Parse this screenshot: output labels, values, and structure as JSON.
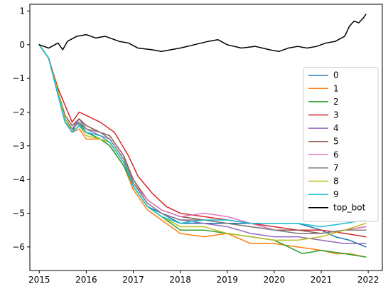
{
  "chart_data": {
    "type": "line",
    "title": "",
    "xlabel": "",
    "ylabel": "",
    "xlim": [
      2014.8,
      2022.3
    ],
    "ylim": [
      -6.7,
      1.2
    ],
    "xticks": [
      2015,
      2016,
      2017,
      2018,
      2019,
      2020,
      2021,
      2022
    ],
    "yticks": [
      1,
      0,
      -1,
      -2,
      -3,
      -4,
      -5,
      -6
    ],
    "ytick_labels": [
      "1",
      "0",
      "−1",
      "−2",
      "−3",
      "−4",
      "−5",
      "−6"
    ],
    "grid": false,
    "legend_position": "center-right",
    "series": [
      {
        "name": "0",
        "color": "#1f77b4",
        "points": [
          [
            2015.0,
            0.0
          ],
          [
            2015.2,
            -0.4
          ],
          [
            2015.4,
            -1.5
          ],
          [
            2015.55,
            -2.3
          ],
          [
            2015.7,
            -2.6
          ],
          [
            2015.8,
            -2.3
          ],
          [
            2016.0,
            -2.6
          ],
          [
            2016.3,
            -2.8
          ],
          [
            2016.5,
            -2.9
          ],
          [
            2016.8,
            -3.5
          ],
          [
            2017.0,
            -4.2
          ],
          [
            2017.3,
            -4.8
          ],
          [
            2017.6,
            -5.0
          ],
          [
            2018.0,
            -5.3
          ],
          [
            2018.5,
            -5.3
          ],
          [
            2019.0,
            -5.3
          ],
          [
            2019.5,
            -5.3
          ],
          [
            2020.0,
            -5.3
          ],
          [
            2020.5,
            -5.3
          ],
          [
            2021.0,
            -5.5
          ],
          [
            2021.3,
            -5.7
          ],
          [
            2021.6,
            -5.8
          ],
          [
            2021.95,
            -6.0
          ]
        ]
      },
      {
        "name": "1",
        "color": "#ff7f0e",
        "points": [
          [
            2015.0,
            0.0
          ],
          [
            2015.2,
            -0.4
          ],
          [
            2015.4,
            -1.4
          ],
          [
            2015.55,
            -2.3
          ],
          [
            2015.7,
            -2.6
          ],
          [
            2015.85,
            -2.5
          ],
          [
            2016.0,
            -2.8
          ],
          [
            2016.3,
            -2.8
          ],
          [
            2016.5,
            -3.0
          ],
          [
            2016.8,
            -3.6
          ],
          [
            2017.0,
            -4.3
          ],
          [
            2017.3,
            -4.9
          ],
          [
            2017.6,
            -5.2
          ],
          [
            2018.0,
            -5.6
          ],
          [
            2018.5,
            -5.7
          ],
          [
            2019.0,
            -5.6
          ],
          [
            2019.5,
            -5.9
          ],
          [
            2020.0,
            -5.9
          ],
          [
            2020.5,
            -6.0
          ],
          [
            2021.0,
            -6.1
          ],
          [
            2021.3,
            -6.2
          ],
          [
            2021.6,
            -6.2
          ],
          [
            2021.95,
            -6.3
          ]
        ]
      },
      {
        "name": "2",
        "color": "#2ca02c",
        "points": [
          [
            2015.0,
            0.0
          ],
          [
            2015.2,
            -0.4
          ],
          [
            2015.4,
            -1.4
          ],
          [
            2015.55,
            -2.2
          ],
          [
            2015.7,
            -2.5
          ],
          [
            2015.85,
            -2.3
          ],
          [
            2016.0,
            -2.6
          ],
          [
            2016.3,
            -2.8
          ],
          [
            2016.5,
            -3.0
          ],
          [
            2016.8,
            -3.6
          ],
          [
            2017.0,
            -4.2
          ],
          [
            2017.3,
            -4.8
          ],
          [
            2017.6,
            -5.1
          ],
          [
            2018.0,
            -5.5
          ],
          [
            2018.5,
            -5.5
          ],
          [
            2019.0,
            -5.6
          ],
          [
            2019.5,
            -5.7
          ],
          [
            2020.0,
            -5.8
          ],
          [
            2020.3,
            -6.0
          ],
          [
            2020.6,
            -6.2
          ],
          [
            2021.0,
            -6.1
          ],
          [
            2021.5,
            -6.2
          ],
          [
            2021.95,
            -6.3
          ]
        ]
      },
      {
        "name": "3",
        "color": "#d62728",
        "points": [
          [
            2015.0,
            0.0
          ],
          [
            2015.2,
            -0.4
          ],
          [
            2015.4,
            -1.3
          ],
          [
            2015.55,
            -1.8
          ],
          [
            2015.7,
            -2.3
          ],
          [
            2015.85,
            -2.0
          ],
          [
            2016.0,
            -2.1
          ],
          [
            2016.3,
            -2.3
          ],
          [
            2016.6,
            -2.6
          ],
          [
            2016.9,
            -3.3
          ],
          [
            2017.1,
            -3.9
          ],
          [
            2017.4,
            -4.4
          ],
          [
            2017.7,
            -4.8
          ],
          [
            2018.0,
            -5.0
          ],
          [
            2018.5,
            -5.1
          ],
          [
            2019.0,
            -5.2
          ],
          [
            2019.5,
            -5.3
          ],
          [
            2020.0,
            -5.4
          ],
          [
            2020.5,
            -5.5
          ],
          [
            2021.0,
            -5.5
          ],
          [
            2021.5,
            -5.6
          ],
          [
            2021.95,
            -5.7
          ]
        ]
      },
      {
        "name": "4",
        "color": "#9467bd",
        "points": [
          [
            2015.0,
            0.0
          ],
          [
            2015.2,
            -0.4
          ],
          [
            2015.4,
            -1.4
          ],
          [
            2015.55,
            -2.2
          ],
          [
            2015.7,
            -2.5
          ],
          [
            2015.85,
            -2.2
          ],
          [
            2016.0,
            -2.5
          ],
          [
            2016.3,
            -2.7
          ],
          [
            2016.5,
            -2.8
          ],
          [
            2016.8,
            -3.4
          ],
          [
            2017.0,
            -4.1
          ],
          [
            2017.3,
            -4.7
          ],
          [
            2017.6,
            -5.0
          ],
          [
            2018.0,
            -5.2
          ],
          [
            2018.5,
            -5.3
          ],
          [
            2019.0,
            -5.4
          ],
          [
            2019.5,
            -5.6
          ],
          [
            2020.0,
            -5.7
          ],
          [
            2020.5,
            -5.7
          ],
          [
            2021.0,
            -5.8
          ],
          [
            2021.5,
            -5.9
          ],
          [
            2021.95,
            -5.9
          ]
        ]
      },
      {
        "name": "5",
        "color": "#8c564b",
        "points": [
          [
            2015.0,
            0.0
          ],
          [
            2015.2,
            -0.4
          ],
          [
            2015.4,
            -1.4
          ],
          [
            2015.55,
            -2.1
          ],
          [
            2015.7,
            -2.4
          ],
          [
            2015.85,
            -2.2
          ],
          [
            2016.0,
            -2.4
          ],
          [
            2016.3,
            -2.6
          ],
          [
            2016.5,
            -2.7
          ],
          [
            2016.8,
            -3.3
          ],
          [
            2017.0,
            -4.0
          ],
          [
            2017.3,
            -4.6
          ],
          [
            2017.6,
            -4.9
          ],
          [
            2018.0,
            -5.1
          ],
          [
            2018.5,
            -5.2
          ],
          [
            2019.0,
            -5.3
          ],
          [
            2019.5,
            -5.4
          ],
          [
            2020.0,
            -5.5
          ],
          [
            2020.5,
            -5.5
          ],
          [
            2021.0,
            -5.6
          ],
          [
            2021.5,
            -5.5
          ],
          [
            2021.95,
            -5.4
          ]
        ]
      },
      {
        "name": "6",
        "color": "#e377c2",
        "points": [
          [
            2015.0,
            0.0
          ],
          [
            2015.2,
            -0.4
          ],
          [
            2015.4,
            -1.4
          ],
          [
            2015.55,
            -2.3
          ],
          [
            2015.7,
            -2.6
          ],
          [
            2015.85,
            -2.4
          ],
          [
            2016.0,
            -2.6
          ],
          [
            2016.3,
            -2.7
          ],
          [
            2016.5,
            -2.8
          ],
          [
            2016.8,
            -3.4
          ],
          [
            2017.0,
            -4.1
          ],
          [
            2017.3,
            -4.6
          ],
          [
            2017.6,
            -4.9
          ],
          [
            2018.0,
            -5.1
          ],
          [
            2018.5,
            -5.0
          ],
          [
            2019.0,
            -5.1
          ],
          [
            2019.5,
            -5.3
          ],
          [
            2020.0,
            -5.5
          ],
          [
            2020.5,
            -5.6
          ],
          [
            2021.0,
            -5.6
          ],
          [
            2021.5,
            -5.5
          ],
          [
            2021.95,
            -5.4
          ]
        ]
      },
      {
        "name": "7",
        "color": "#7f7f7f",
        "points": [
          [
            2015.0,
            0.0
          ],
          [
            2015.2,
            -0.4
          ],
          [
            2015.4,
            -1.4
          ],
          [
            2015.55,
            -2.2
          ],
          [
            2015.7,
            -2.5
          ],
          [
            2015.85,
            -2.3
          ],
          [
            2016.0,
            -2.5
          ],
          [
            2016.3,
            -2.6
          ],
          [
            2016.5,
            -2.8
          ],
          [
            2016.8,
            -3.4
          ],
          [
            2017.0,
            -4.1
          ],
          [
            2017.3,
            -4.7
          ],
          [
            2017.6,
            -5.0
          ],
          [
            2018.0,
            -5.2
          ],
          [
            2018.5,
            -5.2
          ],
          [
            2019.0,
            -5.3
          ],
          [
            2019.5,
            -5.4
          ],
          [
            2020.0,
            -5.5
          ],
          [
            2020.5,
            -5.6
          ],
          [
            2021.0,
            -5.6
          ],
          [
            2021.5,
            -5.5
          ],
          [
            2021.95,
            -5.5
          ]
        ]
      },
      {
        "name": "8",
        "color": "#bcbd22",
        "points": [
          [
            2015.0,
            0.0
          ],
          [
            2015.2,
            -0.4
          ],
          [
            2015.4,
            -1.4
          ],
          [
            2015.55,
            -2.2
          ],
          [
            2015.7,
            -2.6
          ],
          [
            2015.85,
            -2.4
          ],
          [
            2016.0,
            -2.7
          ],
          [
            2016.3,
            -2.8
          ],
          [
            2016.5,
            -2.9
          ],
          [
            2016.8,
            -3.5
          ],
          [
            2017.0,
            -4.2
          ],
          [
            2017.3,
            -4.8
          ],
          [
            2017.6,
            -5.1
          ],
          [
            2018.0,
            -5.4
          ],
          [
            2018.5,
            -5.4
          ],
          [
            2019.0,
            -5.6
          ],
          [
            2019.5,
            -5.7
          ],
          [
            2020.0,
            -5.8
          ],
          [
            2020.5,
            -5.8
          ],
          [
            2021.0,
            -5.7
          ],
          [
            2021.5,
            -5.5
          ],
          [
            2021.95,
            -5.3
          ]
        ]
      },
      {
        "name": "9",
        "color": "#17becf",
        "points": [
          [
            2015.0,
            0.0
          ],
          [
            2015.2,
            -0.4
          ],
          [
            2015.4,
            -1.5
          ],
          [
            2015.55,
            -2.3
          ],
          [
            2015.7,
            -2.6
          ],
          [
            2015.85,
            -2.4
          ],
          [
            2016.0,
            -2.6
          ],
          [
            2016.3,
            -2.7
          ],
          [
            2016.5,
            -2.9
          ],
          [
            2016.8,
            -3.5
          ],
          [
            2017.0,
            -4.2
          ],
          [
            2017.3,
            -4.8
          ],
          [
            2017.6,
            -5.1
          ],
          [
            2018.0,
            -5.3
          ],
          [
            2018.5,
            -5.2
          ],
          [
            2019.0,
            -5.2
          ],
          [
            2019.5,
            -5.3
          ],
          [
            2020.0,
            -5.3
          ],
          [
            2020.5,
            -5.3
          ],
          [
            2021.0,
            -5.4
          ],
          [
            2021.5,
            -5.3
          ],
          [
            2021.95,
            -5.2
          ]
        ]
      },
      {
        "name": "top_bot",
        "color": "#000000",
        "points": [
          [
            2015.0,
            0.0
          ],
          [
            2015.2,
            -0.1
          ],
          [
            2015.4,
            0.05
          ],
          [
            2015.5,
            -0.15
          ],
          [
            2015.6,
            0.1
          ],
          [
            2015.8,
            0.25
          ],
          [
            2016.0,
            0.3
          ],
          [
            2016.2,
            0.2
          ],
          [
            2016.4,
            0.25
          ],
          [
            2016.7,
            0.1
          ],
          [
            2016.9,
            0.05
          ],
          [
            2017.1,
            -0.1
          ],
          [
            2017.4,
            -0.15
          ],
          [
            2017.6,
            -0.2
          ],
          [
            2018.0,
            -0.1
          ],
          [
            2018.3,
            0.0
          ],
          [
            2018.6,
            0.1
          ],
          [
            2018.8,
            0.15
          ],
          [
            2019.0,
            0.0
          ],
          [
            2019.3,
            -0.1
          ],
          [
            2019.6,
            -0.05
          ],
          [
            2019.9,
            -0.15
          ],
          [
            2020.1,
            -0.2
          ],
          [
            2020.3,
            -0.1
          ],
          [
            2020.5,
            -0.05
          ],
          [
            2020.7,
            -0.1
          ],
          [
            2020.9,
            -0.05
          ],
          [
            2021.1,
            0.05
          ],
          [
            2021.3,
            0.1
          ],
          [
            2021.5,
            0.25
          ],
          [
            2021.6,
            0.55
          ],
          [
            2021.7,
            0.7
          ],
          [
            2021.8,
            0.65
          ],
          [
            2021.9,
            0.8
          ],
          [
            2021.95,
            0.9
          ]
        ]
      }
    ]
  }
}
